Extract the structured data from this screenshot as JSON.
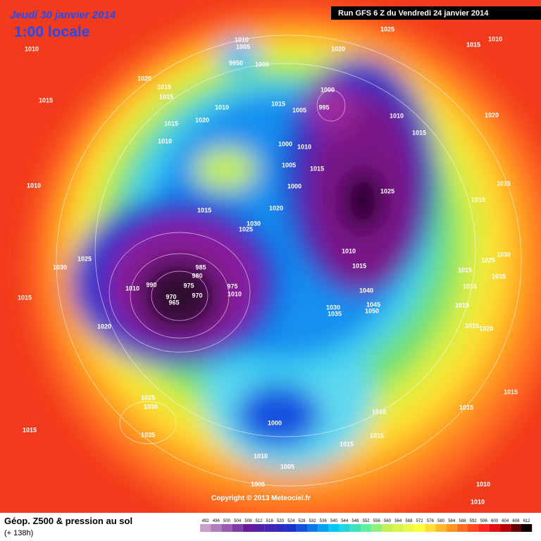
{
  "header": {
    "date": "Jeudi 30 janvier 2014",
    "time": "1:00 locale",
    "run": "Run GFS 6 Z du Vendredi 24 janvier 2014"
  },
  "copyright": "Copyright © 2013 Meteociel.fr",
  "footer": {
    "title": "Géop. Z500 & pression au sol",
    "lead": "(+ 138h)"
  },
  "scale": {
    "values": [
      492,
      496,
      500,
      504,
      508,
      512,
      516,
      520,
      524,
      528,
      532,
      536,
      540,
      544,
      548,
      552,
      556,
      560,
      564,
      568,
      572,
      576,
      580,
      584,
      588,
      592,
      596,
      600,
      604,
      608,
      612
    ]
  },
  "isobars": [
    "1010",
    "1015",
    "1010",
    "1005",
    "9950",
    "1000",
    "1020",
    "1015",
    "1015",
    "1010",
    "1020",
    "1015",
    "1010",
    "1020",
    "1025",
    "1010",
    "1015",
    "1015",
    "1000",
    "1005",
    "995",
    "1010",
    "1015",
    "1020",
    "1000",
    "1010",
    "1005",
    "1015",
    "1000",
    "1020",
    "1010",
    "1015",
    "1025",
    "1015",
    "1015",
    "1030",
    "1025",
    "1025",
    "1030",
    "1010",
    "1030",
    "1025",
    "985",
    "980",
    "990",
    "975",
    "1010",
    "975",
    "1010",
    "970",
    "970",
    "965",
    "1015",
    "1040",
    "1015",
    "1035",
    "1010",
    "1015",
    "1030",
    "1045",
    "1050",
    "1035",
    "1015",
    "1015",
    "1020",
    "1020",
    "1025",
    "1030",
    "1035",
    "1015",
    "1000",
    "1010",
    "1015",
    "1015",
    "1015",
    "1015",
    "1010",
    "1005",
    "1005",
    "1010",
    "1010"
  ]
}
